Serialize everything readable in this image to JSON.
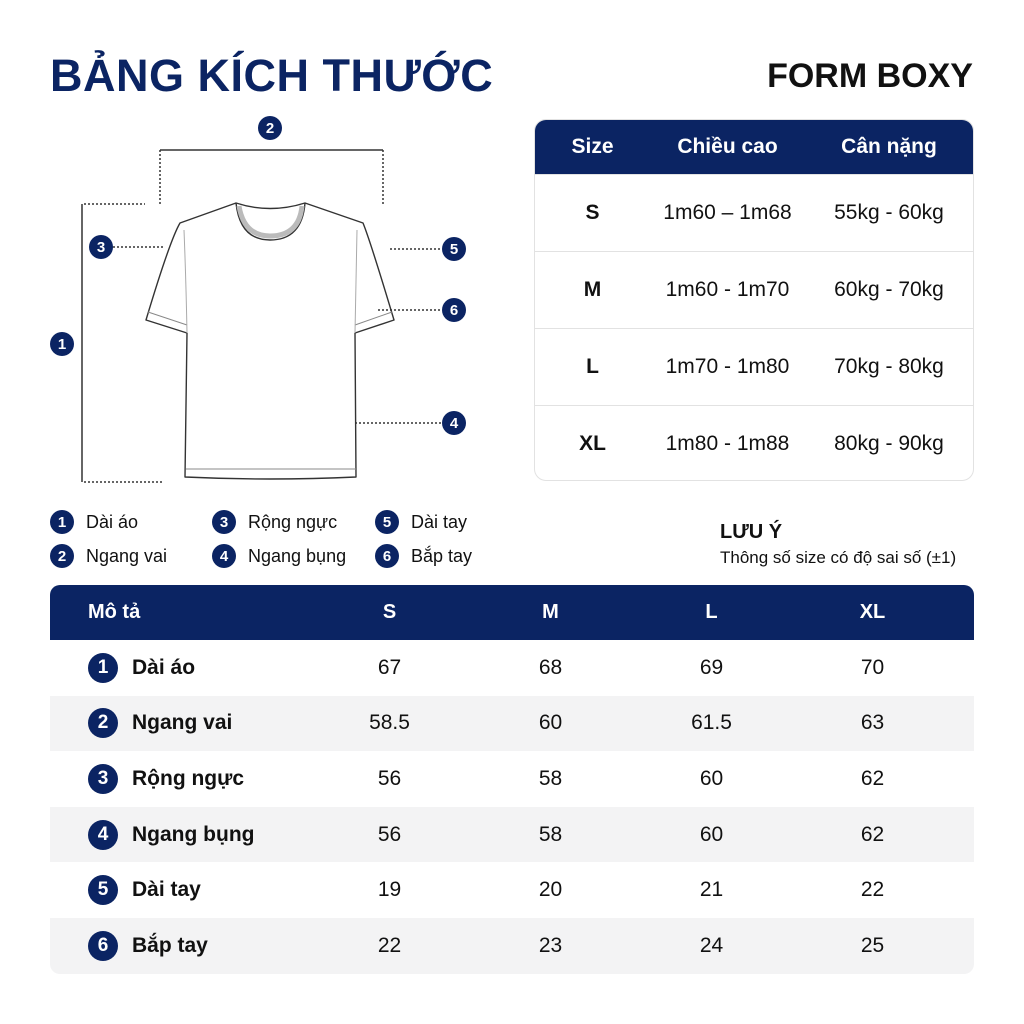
{
  "title": "BẢNG KÍCH THƯỚC",
  "subtitle": "FORM BOXY",
  "colors": {
    "navy": "#0b2463",
    "row_alt": "#f3f3f4"
  },
  "diagram_markers": [
    "1",
    "2",
    "3",
    "4",
    "5",
    "6"
  ],
  "legend": [
    {
      "n": "1",
      "label": "Dài áo"
    },
    {
      "n": "2",
      "label": "Ngang vai"
    },
    {
      "n": "3",
      "label": "Rộng ngực"
    },
    {
      "n": "4",
      "label": "Ngang bụng"
    },
    {
      "n": "5",
      "label": "Dài tay"
    },
    {
      "n": "6",
      "label": "Bắp tay"
    }
  ],
  "size_table": {
    "headers": [
      "Size",
      "Chiều cao",
      "Cân nặng"
    ],
    "rows": [
      [
        "S",
        "1m60 – 1m68",
        "55kg - 60kg"
      ],
      [
        "M",
        "1m60 - 1m70",
        "60kg - 70kg"
      ],
      [
        "L",
        "1m70 - 1m80",
        "70kg - 80kg"
      ],
      [
        "XL",
        "1m80 - 1m88",
        "80kg - 90kg"
      ]
    ]
  },
  "note": {
    "heading": "LƯU Ý",
    "text": "Thông số size có độ sai số (±1)"
  },
  "measure_table": {
    "headers": [
      "Mô tả",
      "S",
      "M",
      "L",
      "XL"
    ],
    "rows": [
      {
        "n": "1",
        "label": "Dài áo",
        "values": [
          "67",
          "68",
          "69",
          "70"
        ]
      },
      {
        "n": "2",
        "label": "Ngang vai",
        "values": [
          "58.5",
          "60",
          "61.5",
          "63"
        ]
      },
      {
        "n": "3",
        "label": "Rộng ngực",
        "values": [
          "56",
          "58",
          "60",
          "62"
        ]
      },
      {
        "n": "4",
        "label": "Ngang bụng",
        "values": [
          "56",
          "58",
          "60",
          "62"
        ]
      },
      {
        "n": "5",
        "label": "Dài tay",
        "values": [
          "19",
          "20",
          "21",
          "22"
        ]
      },
      {
        "n": "6",
        "label": "Bắp tay",
        "values": [
          "22",
          "23",
          "24",
          "25"
        ]
      }
    ]
  }
}
